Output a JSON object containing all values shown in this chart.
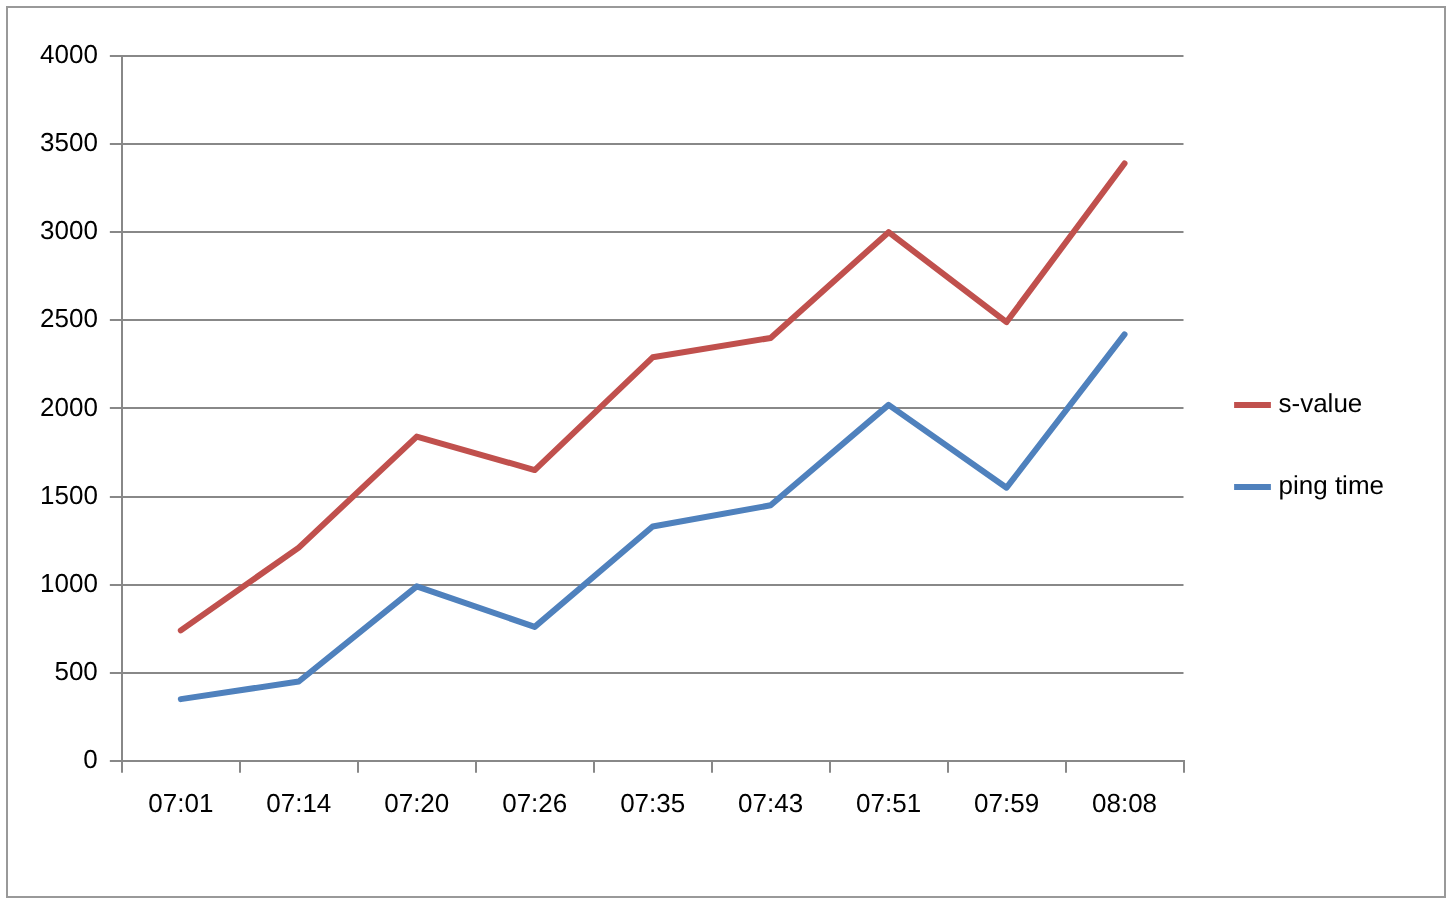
{
  "chart_data": {
    "type": "line",
    "categories": [
      "07:01",
      "07:14",
      "07:20",
      "07:26",
      "07:35",
      "07:43",
      "07:51",
      "07:59",
      "08:08"
    ],
    "series": [
      {
        "name": "s-value",
        "color": "#c0504d",
        "values": [
          740,
          1210,
          1840,
          1650,
          2290,
          2400,
          3000,
          2490,
          3390
        ]
      },
      {
        "name": "ping time",
        "color": "#4f81bd",
        "values": [
          350,
          450,
          990,
          760,
          1330,
          1450,
          2020,
          1550,
          2420
        ]
      }
    ],
    "ylim": [
      0,
      4000
    ],
    "yticks": [
      0,
      500,
      1000,
      1500,
      2000,
      2500,
      3000,
      3500,
      4000
    ],
    "grid": "y",
    "legend": "right",
    "marker": "none",
    "line_style": "solid"
  }
}
